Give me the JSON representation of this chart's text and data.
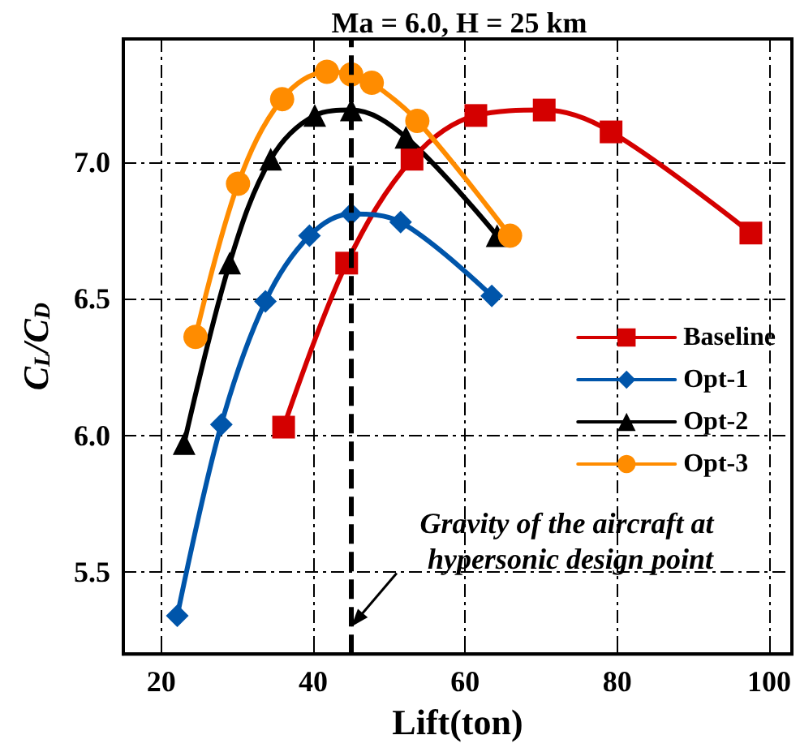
{
  "chart_data": {
    "type": "line",
    "title": "Ma = 6.0, H = 25 km",
    "xlabel": "Lift(ton)",
    "ylabel": "C$_{L}$/C$_{D}$",
    "xlim": [
      15,
      103
    ],
    "xticks": [
      20,
      40,
      60,
      80,
      100
    ],
    "ylim": [
      5.2,
      7.45
    ],
    "yticks": [
      {
        "value": 5.5,
        "label": "5.5"
      },
      {
        "value": 6,
        "label": "6.0"
      },
      {
        "value": 6.5,
        "label": "6.5"
      },
      {
        "value": 7,
        "label": "7.0"
      }
    ],
    "grid": true,
    "legend": "right",
    "line_style": "solid",
    "series": [
      {
        "name": "Baseline",
        "color": "#d40000",
        "marker": "square",
        "x": [
          36.1,
          44.4,
          53,
          61.4,
          70.4,
          79.2,
          97.6
        ],
        "values": [
          6.03,
          6.63,
          7.01,
          7.17,
          7.19,
          7.11,
          6.74
        ]
      },
      {
        "name": "Opt-1",
        "color": "#0055aa",
        "marker": "diamond",
        "x": [
          22.1,
          27.9,
          33.7,
          39.5,
          45,
          51.5,
          63.5
        ],
        "values": [
          5.34,
          6.04,
          6.49,
          6.73,
          6.81,
          6.78,
          6.51
        ]
      },
      {
        "name": "Opt-2",
        "color": "#000000",
        "marker": "triangle",
        "x": [
          23,
          29,
          34.4,
          40.2,
          45,
          52.2,
          64.2
        ],
        "values": [
          5.97,
          6.63,
          7.01,
          7.17,
          7.19,
          7.09,
          6.73
        ]
      },
      {
        "name": "Opt-3",
        "color": "#ff8c00",
        "marker": "circle",
        "x": [
          24.5,
          30.1,
          35.9,
          41.8,
          45,
          47.7,
          53.7,
          65.9
        ],
        "values": [
          6.36,
          6.92,
          7.23,
          7.33,
          7.32,
          7.29,
          7.15,
          6.73
        ]
      }
    ],
    "ref_lines": [
      {
        "axis": "x",
        "value": 45,
        "color": "#000000",
        "line_style": "dashed"
      }
    ],
    "annotations": [
      {
        "text": "Gravity of the aircraft at hypersonic design point",
        "x": 45,
        "y": 5.3
      }
    ]
  }
}
